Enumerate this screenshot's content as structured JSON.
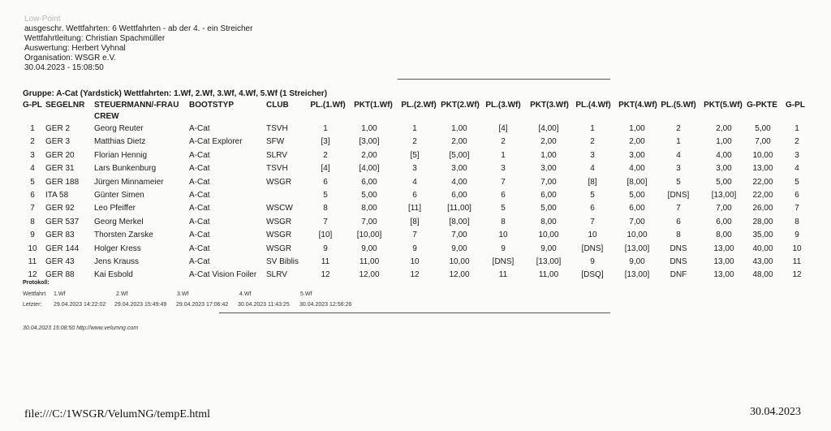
{
  "header": {
    "scoring": "Low-Point",
    "races": "ausgeschr. Wettfahrten: 6 Wettfahrten - ab der 4. - ein Streicher",
    "race_officer": "Wettfahrtleitung: Christian Spachmüller",
    "evaluation": "Auswertung: Herbert Vyhnal",
    "organisation": "Organisation: WSGR e.V.",
    "datetime": "30.04.2023 - 15:08:50"
  },
  "group_title": "Gruppe: A-Cat (Yardstick) Wettfahrten: 1.Wf, 2.Wf, 3.Wf, 4.Wf, 5.Wf (1 Streicher)",
  "table": {
    "columns": [
      "G-PL",
      "SEGELNR",
      "STEUERMANN/-FRAU",
      "BOOTSTYP",
      "CLUB",
      "PL.(1.Wf)",
      "PKT(1.Wf)",
      "PL.(2.Wf)",
      "PKT(2.Wf)",
      "PL.(3.Wf)",
      "PKT(3.Wf)",
      "PL.(4.Wf)",
      "PKT(4.Wf)",
      "PL.(5.Wf)",
      "PKT(5.Wf)",
      "G-PKTE",
      "G-PL"
    ],
    "crew_label": "CREW",
    "rows": [
      [
        "1",
        "GER 2",
        "Georg Reuter",
        "A-Cat",
        "TSVH",
        "1",
        "1,00",
        "1",
        "1,00",
        "[4]",
        "[4,00]",
        "1",
        "1,00",
        "2",
        "2,00",
        "5,00",
        "1"
      ],
      [
        "2",
        "GER 3",
        "Matthias Dietz",
        "A-Cat Explorer",
        "SFW",
        "[3]",
        "[3,00]",
        "2",
        "2,00",
        "2",
        "2,00",
        "2",
        "2,00",
        "1",
        "1,00",
        "7,00",
        "2"
      ],
      [
        "3",
        "GER 20",
        "Florian Hennig",
        "A-Cat",
        "SLRV",
        "2",
        "2,00",
        "[5]",
        "[5,00]",
        "1",
        "1,00",
        "3",
        "3,00",
        "4",
        "4,00",
        "10,00",
        "3"
      ],
      [
        "4",
        "GER 31",
        "Lars Bunkenburg",
        "A-Cat",
        "TSVH",
        "[4]",
        "[4,00]",
        "3",
        "3,00",
        "3",
        "3,00",
        "4",
        "4,00",
        "3",
        "3,00",
        "13,00",
        "4"
      ],
      [
        "5",
        "GER 188",
        "Jürgen Minnameier",
        "A-Cat",
        "WSGR",
        "6",
        "6,00",
        "4",
        "4,00",
        "7",
        "7,00",
        "[8]",
        "[8,00]",
        "5",
        "5,00",
        "22,00",
        "5"
      ],
      [
        "6",
        "ITA 58",
        "Günter Simen",
        "A-Cat",
        "",
        "5",
        "5,00",
        "6",
        "6,00",
        "6",
        "6,00",
        "5",
        "5,00",
        "[DNS]",
        "[13,00]",
        "22,00",
        "6"
      ],
      [
        "7",
        "GER 92",
        "Leo Pfeiffer",
        "A-Cat",
        "WSCW",
        "8",
        "8,00",
        "[11]",
        "[11,00]",
        "5",
        "5,00",
        "6",
        "6,00",
        "7",
        "7,00",
        "26,00",
        "7"
      ],
      [
        "8",
        "GER 537",
        "Georg Merkel",
        "A-Cat",
        "WSGR",
        "7",
        "7,00",
        "[8]",
        "[8,00]",
        "8",
        "8,00",
        "7",
        "7,00",
        "6",
        "6,00",
        "28,00",
        "8"
      ],
      [
        "9",
        "GER 83",
        "Thorsten Zarske",
        "A-Cat",
        "WSGR",
        "[10]",
        "[10,00]",
        "7",
        "7,00",
        "10",
        "10,00",
        "10",
        "10,00",
        "8",
        "8,00",
        "35,00",
        "9"
      ],
      [
        "10",
        "GER 144",
        "Holger Kress",
        "A-Cat",
        "WSGR",
        "9",
        "9,00",
        "9",
        "9,00",
        "9",
        "9,00",
        "[DNS]",
        "[13,00]",
        "DNS",
        "13,00",
        "40,00",
        "10"
      ],
      [
        "11",
        "GER 43",
        "Jens Krauss",
        "A-Cat",
        "SV Biblis",
        "11",
        "11,00",
        "10",
        "10,00",
        "[DNS]",
        "[13,00]",
        "9",
        "9,00",
        "DNS",
        "13,00",
        "43,00",
        "11"
      ],
      [
        "12",
        "GER 88",
        "Kai Esbold",
        "A-Cat Vision Foiler",
        "SLRV",
        "12",
        "12,00",
        "12",
        "12,00",
        "11",
        "11,00",
        "[DSQ]",
        "[13,00]",
        "DNF",
        "13,00",
        "48,00",
        "12"
      ]
    ]
  },
  "protocol": {
    "title": "Protokoll:",
    "race_label": "Wettfahrt",
    "races": [
      "1.Wf",
      "2.Wf",
      "3.Wf",
      "4.Wf",
      "5.Wf"
    ],
    "last_label": "Letzter:",
    "last_times": [
      "29.04.2023 14:22:02",
      "29.04.2023 15:49:49",
      "29.04.2023 17:06:42",
      "30.04.2023 11:43:25",
      "30.04.2023 12:56:26"
    ]
  },
  "footer": {
    "timestamp": "30.04.2023 15:08:50",
    "link": "http://www.velumng.com",
    "file_path": "file:///C:/1WSGR/VelumNG/tempE.html",
    "print_date": "30.04.2023"
  }
}
